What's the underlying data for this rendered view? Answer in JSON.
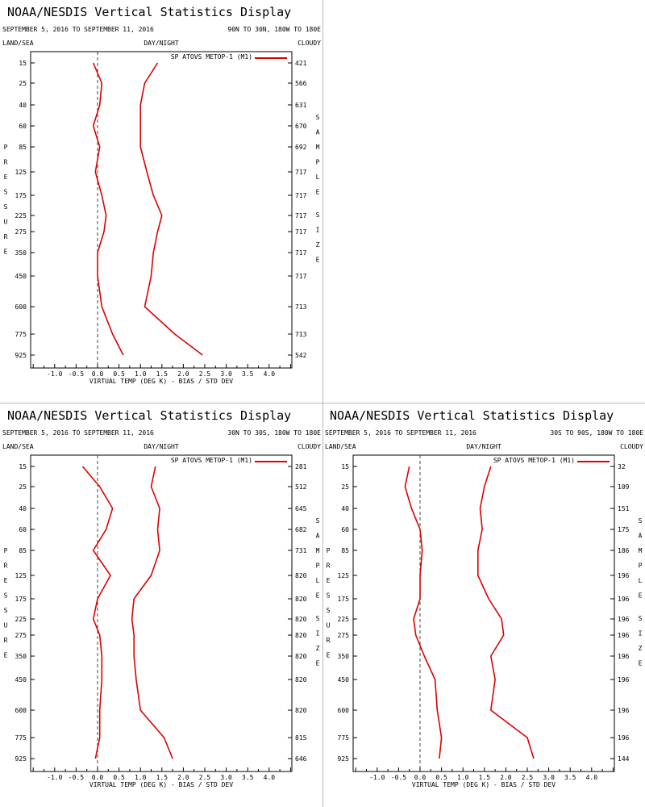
{
  "chart_data": [
    {
      "type": "line",
      "title": "NOAA/NESDIS Vertical Statistics Display",
      "date_range": "SEPTEMBER 5, 2016 TO SEPTEMBER 11, 2016",
      "region": "90N TO 30N, 180W TO 180E",
      "corner_labels": {
        "left": "LAND/SEA",
        "center": "DAY/NIGHT",
        "right": "CLOUDY"
      },
      "xlabel": "VIRTUAL TEMP (DEG K) - BIAS / STD DEV",
      "ylabel": "PRESSURE",
      "y2label": "SAMPLE SIZE",
      "xlim": [
        -1.5,
        4.5
      ],
      "x_ticks": [
        "-1.0",
        "-0.5",
        "0.0",
        "0.5",
        "1.0",
        "1.5",
        "2.0",
        "2.5",
        "3.0",
        "3.5",
        "4.0"
      ],
      "pressure_levels": [
        "15",
        "25",
        "40",
        "60",
        "85",
        "125",
        "175",
        "225",
        "275",
        "350",
        "450",
        "600",
        "775",
        "925"
      ],
      "sample_sizes": [
        "421",
        "566",
        "631",
        "670",
        "692",
        "717",
        "717",
        "717",
        "717",
        "717",
        "717",
        "713",
        "713",
        "542"
      ],
      "legend": "SP ATOVS METOP-1 (M1)",
      "legend_position": "top-right",
      "line_color": "#dd0000",
      "series": [
        {
          "role": "bias",
          "values": [
            -0.1,
            0.1,
            0.05,
            -0.1,
            0.05,
            -0.05,
            0.1,
            0.2,
            0.15,
            0.0,
            0.0,
            0.1,
            0.35,
            0.6
          ]
        },
        {
          "role": "std_dev",
          "values": [
            1.4,
            1.1,
            1.0,
            1.0,
            1.0,
            1.15,
            1.3,
            1.5,
            1.4,
            1.3,
            1.25,
            1.1,
            1.8,
            2.45
          ]
        }
      ]
    },
    {
      "type": "line",
      "title": "NOAA/NESDIS Vertical Statistics Display",
      "date_range": "SEPTEMBER 5, 2016 TO SEPTEMBER 11, 2016",
      "region": "30N TO 30S, 180W TO 180E",
      "corner_labels": {
        "left": "LAND/SEA",
        "center": "DAY/NIGHT",
        "right": "CLOUDY"
      },
      "xlabel": "VIRTUAL TEMP (DEG K) - BIAS / STD DEV",
      "ylabel": "PRESSURE",
      "y2label": "SAMPLE SIZE",
      "xlim": [
        -1.5,
        4.5
      ],
      "x_ticks": [
        "-1.0",
        "-0.5",
        "0.0",
        "0.5",
        "1.0",
        "1.5",
        "2.0",
        "2.5",
        "3.0",
        "3.5",
        "4.0"
      ],
      "pressure_levels": [
        "15",
        "25",
        "40",
        "60",
        "85",
        "125",
        "175",
        "225",
        "275",
        "350",
        "450",
        "600",
        "775",
        "925"
      ],
      "sample_sizes": [
        "281",
        "512",
        "645",
        "682",
        "731",
        "820",
        "820",
        "820",
        "820",
        "820",
        "820",
        "820",
        "815",
        "646"
      ],
      "legend": "SP ATOVS METOP-1 (M1)",
      "legend_position": "top-right",
      "line_color": "#dd0000",
      "series": [
        {
          "role": "bias",
          "values": [
            -0.35,
            0.05,
            0.35,
            0.2,
            -0.1,
            0.3,
            0.0,
            -0.1,
            0.05,
            0.1,
            0.1,
            0.05,
            0.05,
            -0.05
          ]
        },
        {
          "role": "std_dev",
          "values": [
            1.35,
            1.25,
            1.45,
            1.4,
            1.45,
            1.25,
            0.85,
            0.8,
            0.85,
            0.85,
            0.9,
            1.0,
            1.55,
            1.75
          ]
        }
      ]
    },
    {
      "type": "line",
      "title": "NOAA/NESDIS Vertical Statistics Display",
      "date_range": "SEPTEMBER 5, 2016 TO SEPTEMBER 11, 2016",
      "region": "30S TO 90S, 180W TO 180E",
      "corner_labels": {
        "left": "LAND/SEA",
        "center": "DAY/NIGHT",
        "right": "CLOUDY"
      },
      "xlabel": "VIRTUAL TEMP (DEG K) - BIAS / STD DEV",
      "ylabel": "PRESSURE",
      "y2label": "SAMPLE SIZE",
      "xlim": [
        -1.5,
        4.5
      ],
      "x_ticks": [
        "-1.0",
        "-0.5",
        "0.0",
        "0.5",
        "1.0",
        "1.5",
        "2.0",
        "2.5",
        "3.0",
        "3.5",
        "4.0"
      ],
      "pressure_levels": [
        "15",
        "25",
        "40",
        "60",
        "85",
        "125",
        "175",
        "225",
        "275",
        "350",
        "450",
        "600",
        "775",
        "925"
      ],
      "sample_sizes": [
        "32",
        "109",
        "151",
        "175",
        "186",
        "196",
        "196",
        "196",
        "196",
        "196",
        "196",
        "196",
        "196",
        "144"
      ],
      "legend": "SP ATOVS METOP-1 (M1)",
      "legend_position": "top-right",
      "line_color": "#dd0000",
      "series": [
        {
          "role": "bias",
          "values": [
            -0.25,
            -0.35,
            -0.2,
            0.0,
            0.05,
            0.0,
            0.0,
            -0.15,
            -0.1,
            0.1,
            0.35,
            0.4,
            0.5,
            0.45
          ]
        },
        {
          "role": "std_dev",
          "values": [
            1.65,
            1.5,
            1.4,
            1.45,
            1.35,
            1.35,
            1.6,
            1.9,
            1.95,
            1.65,
            1.75,
            1.65,
            2.5,
            2.65
          ]
        }
      ]
    }
  ]
}
